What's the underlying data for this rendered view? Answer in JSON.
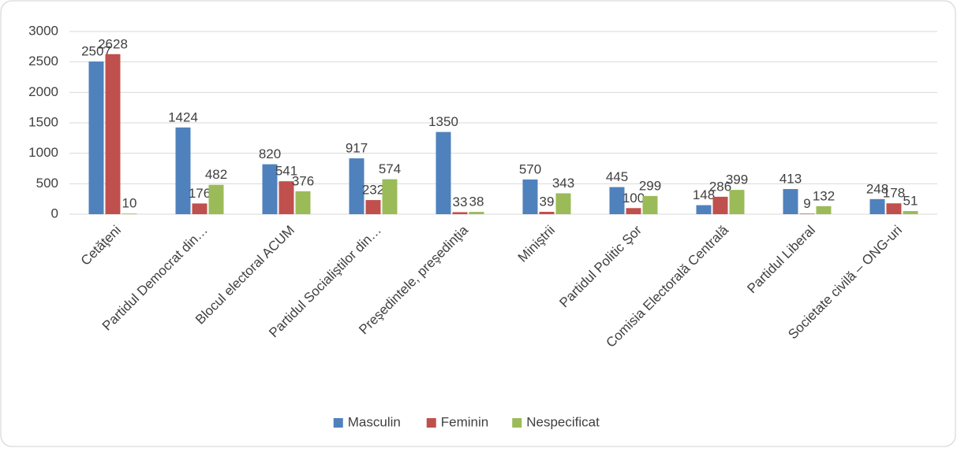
{
  "chart_data": {
    "type": "bar",
    "categories": [
      "Cetăţeni",
      "Partidul Democrat din…",
      "Blocul electoral ACUM",
      "Partidul Socialiştilor din…",
      "Preşedintele, preşedinţia",
      "Miniştrii",
      "Partidul Politic Şor",
      "Comisia Electorală Centrală",
      "Partidul Liberal",
      "Societate civilă – ONG-uri"
    ],
    "series": [
      {
        "name": "Masculin",
        "color": "#4f81bd",
        "values": [
          2507,
          1424,
          820,
          917,
          1350,
          570,
          445,
          148,
          413,
          248
        ]
      },
      {
        "name": "Feminin",
        "color": "#c0504d",
        "values": [
          2628,
          176,
          541,
          232,
          33,
          39,
          100,
          286,
          9,
          178
        ]
      },
      {
        "name": "Nespecificat",
        "color": "#9bbb59",
        "values": [
          10,
          482,
          376,
          574,
          38,
          343,
          299,
          399,
          132,
          51
        ]
      }
    ],
    "ylim": [
      0,
      3000
    ],
    "yticks": [
      0,
      500,
      1000,
      1500,
      2000,
      2500,
      3000
    ],
    "grid": true,
    "legend": "bottom"
  }
}
